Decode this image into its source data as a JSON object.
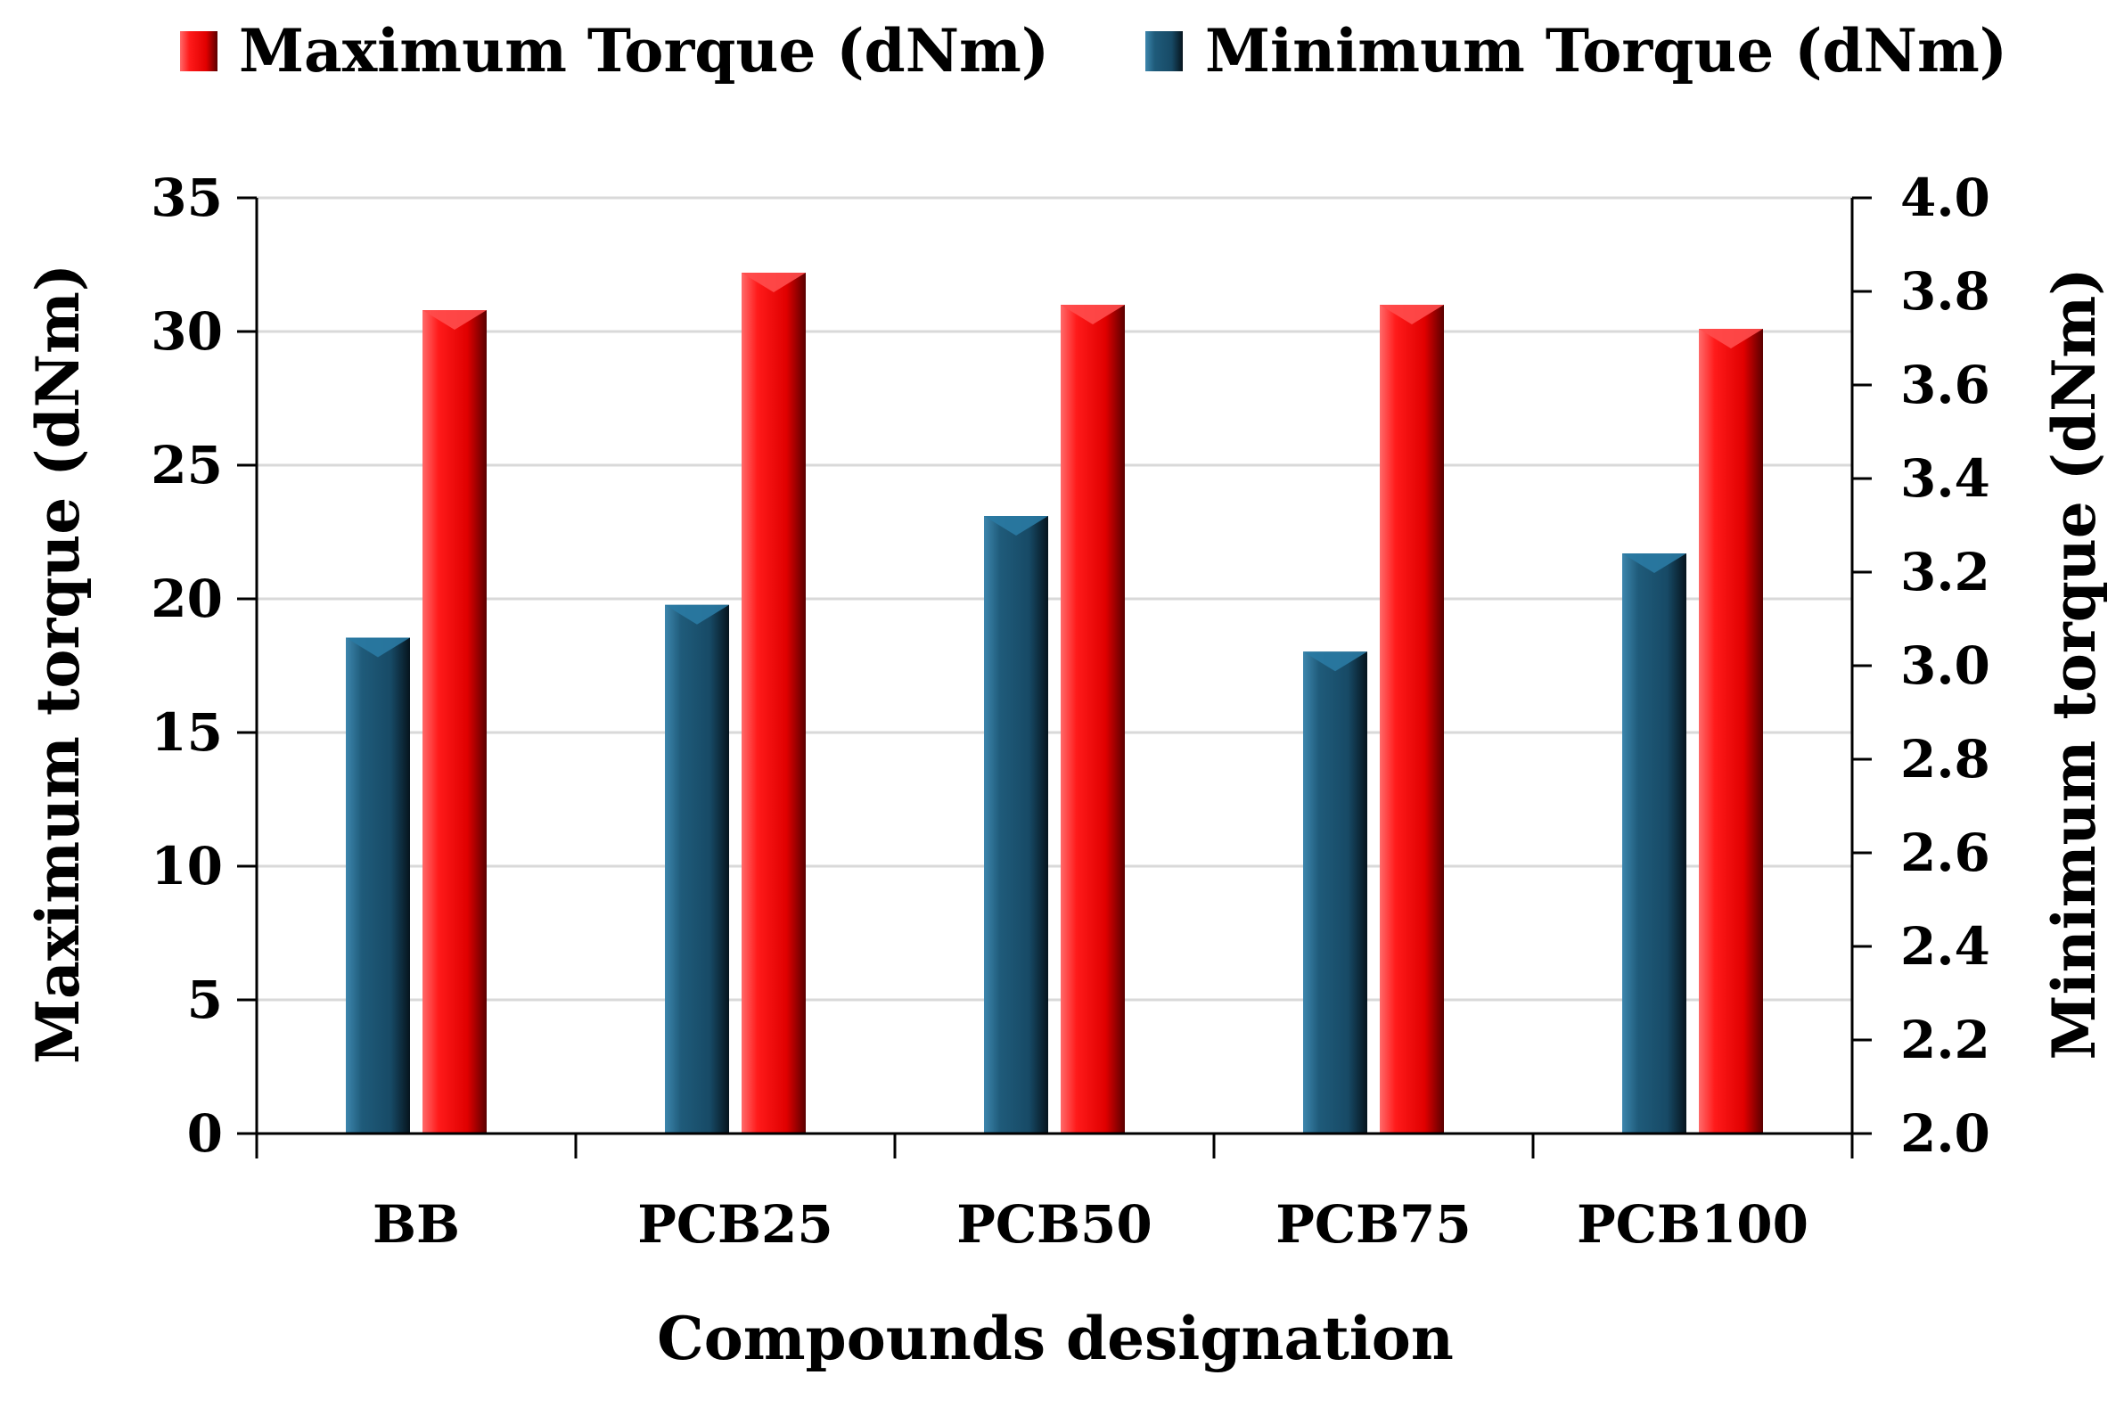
{
  "chart_data": {
    "type": "bar",
    "categories": [
      "BB",
      "PCB25",
      "PCB50",
      "PCB75",
      "PCB100"
    ],
    "series": [
      {
        "name": "Minimum Torque (dNm)",
        "axis": "right",
        "color": "#1f5b7a",
        "values": [
          3.06,
          3.13,
          3.32,
          3.03,
          3.24
        ]
      },
      {
        "name": "Maximum Torque (dNm)",
        "axis": "left",
        "color": "#ff1a1a",
        "values": [
          30.8,
          32.2,
          31.0,
          31.0,
          30.1
        ]
      }
    ],
    "legend_order": [
      "Maximum Torque (dNm)",
      "Minimum Torque (dNm)"
    ],
    "xlabel": "Compounds designation",
    "ylabel_left": "Maximum torque (dNm)",
    "ylabel_right": "Minimum torque (dNm)",
    "ylim_left": [
      0,
      35
    ],
    "yticks_left": [
      "0",
      "5",
      "10",
      "15",
      "20",
      "25",
      "30",
      "35"
    ],
    "ylim_right": [
      2.0,
      4.0
    ],
    "yticks_right": [
      "2.0",
      "2.2",
      "2.4",
      "2.6",
      "2.8",
      "3.0",
      "3.2",
      "3.4",
      "3.6",
      "3.8",
      "4.0"
    ],
    "grid": true,
    "legend_position": "top-center"
  }
}
